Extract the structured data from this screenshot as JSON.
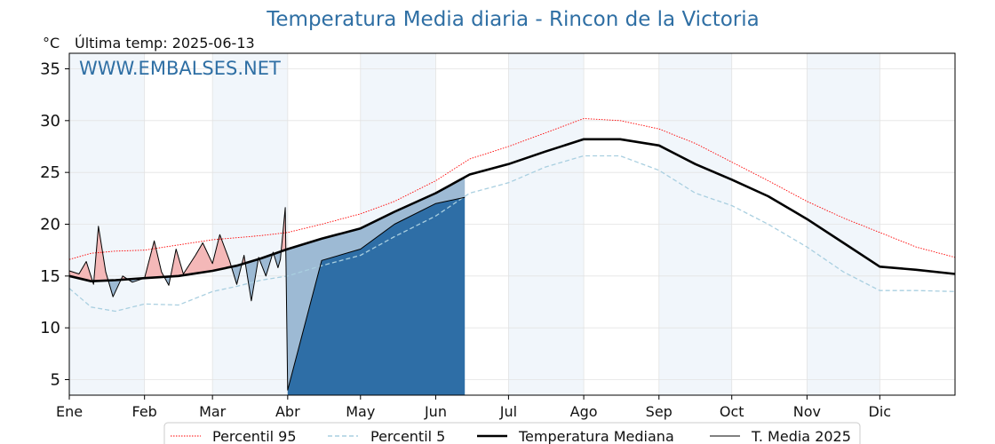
{
  "title": "Temperatura Media diaria - Rincon de la Victoria",
  "unit": "°C",
  "last_temp": "Última temp: 2025-06-13",
  "watermark": "WWW.EMBALSES.NET",
  "chart_data": {
    "type": "line",
    "title": "Temperatura Media diaria - Rincon de la Victoria",
    "ylabel": "°C",
    "xlim": [
      1,
      366
    ],
    "ylim": [
      3.5,
      36.5
    ],
    "yticks": [
      5,
      10,
      15,
      20,
      25,
      30,
      35
    ],
    "months": [
      "Ene",
      "Feb",
      "Mar",
      "Abr",
      "May",
      "Jun",
      "Jul",
      "Ago",
      "Sep",
      "Oct",
      "Nov",
      "Dic"
    ],
    "month_start_days": [
      1,
      32,
      60,
      91,
      121,
      152,
      182,
      213,
      244,
      274,
      305,
      335
    ],
    "grid": true,
    "legend_position": "bottom-center",
    "x_description": "day of year",
    "series": [
      {
        "name": "Percentil 95",
        "color": "#ff0000",
        "style": "dotted",
        "days": [
          1,
          10,
          20,
          32,
          46,
          60,
          70,
          80,
          91,
          105,
          121,
          135,
          152,
          166,
          182,
          197,
          213,
          228,
          244,
          259,
          274,
          289,
          305,
          320,
          335,
          350,
          366
        ],
        "values": [
          16.6,
          17.2,
          17.4,
          17.5,
          18.0,
          18.5,
          18.7,
          18.9,
          19.2,
          20.0,
          21.0,
          22.2,
          24.2,
          26.3,
          27.5,
          28.8,
          30.2,
          30.0,
          29.2,
          27.8,
          26.0,
          24.2,
          22.2,
          20.6,
          19.2,
          17.8,
          16.8
        ]
      },
      {
        "name": "Percentil 5",
        "color": "#a9cfe0",
        "style": "dashed",
        "days": [
          1,
          10,
          20,
          32,
          46,
          60,
          70,
          80,
          91,
          105,
          121,
          135,
          152,
          166,
          182,
          197,
          213,
          228,
          244,
          259,
          274,
          289,
          305,
          320,
          335,
          350,
          366
        ],
        "values": [
          13.8,
          12.0,
          11.6,
          12.3,
          12.2,
          13.5,
          14.0,
          14.6,
          15.0,
          16.0,
          17.0,
          18.8,
          20.8,
          23.0,
          24.0,
          25.5,
          26.6,
          26.6,
          25.2,
          23.0,
          21.8,
          20.0,
          17.8,
          15.4,
          13.6,
          13.6,
          13.5
        ]
      },
      {
        "name": "Temperatura Mediana",
        "color": "#000000",
        "style": "solid-thick",
        "days": [
          1,
          10,
          20,
          32,
          46,
          60,
          70,
          80,
          91,
          105,
          121,
          135,
          152,
          166,
          182,
          197,
          213,
          228,
          244,
          259,
          274,
          289,
          305,
          320,
          335,
          350,
          366
        ],
        "values": [
          15.0,
          14.5,
          14.6,
          14.8,
          15.0,
          15.5,
          16.0,
          16.7,
          17.6,
          18.6,
          19.6,
          21.2,
          23.0,
          24.8,
          25.8,
          27.0,
          28.2,
          28.2,
          27.6,
          25.8,
          24.3,
          22.7,
          20.5,
          18.2,
          15.9,
          15.6,
          15.2
        ]
      },
      {
        "name": "T. Media 2025",
        "color": "#000000",
        "style": "solid-thin",
        "days": [
          1,
          5,
          8,
          11,
          13,
          16,
          19,
          23,
          27,
          32,
          36,
          39,
          42,
          45,
          48,
          53,
          56,
          60,
          63,
          67,
          70,
          73,
          76,
          79,
          82,
          85,
          87,
          88,
          90,
          91,
          105,
          121,
          135,
          152,
          164
        ],
        "values": [
          15.5,
          15.2,
          16.4,
          14.2,
          19.8,
          15.4,
          13.0,
          15.0,
          14.4,
          14.8,
          18.4,
          15.4,
          14.1,
          17.6,
          15.2,
          17.0,
          18.2,
          16.2,
          19.0,
          16.5,
          14.2,
          17.0,
          12.6,
          16.8,
          15.0,
          17.3,
          15.8,
          16.6,
          21.6,
          4.0,
          16.5,
          17.6,
          20.0,
          22.0,
          22.6
        ]
      }
    ]
  },
  "legend": {
    "p95": "Percentil 95",
    "p5": "Percentil 5",
    "median": "Temperatura Mediana",
    "current": "T. Media 2025"
  }
}
